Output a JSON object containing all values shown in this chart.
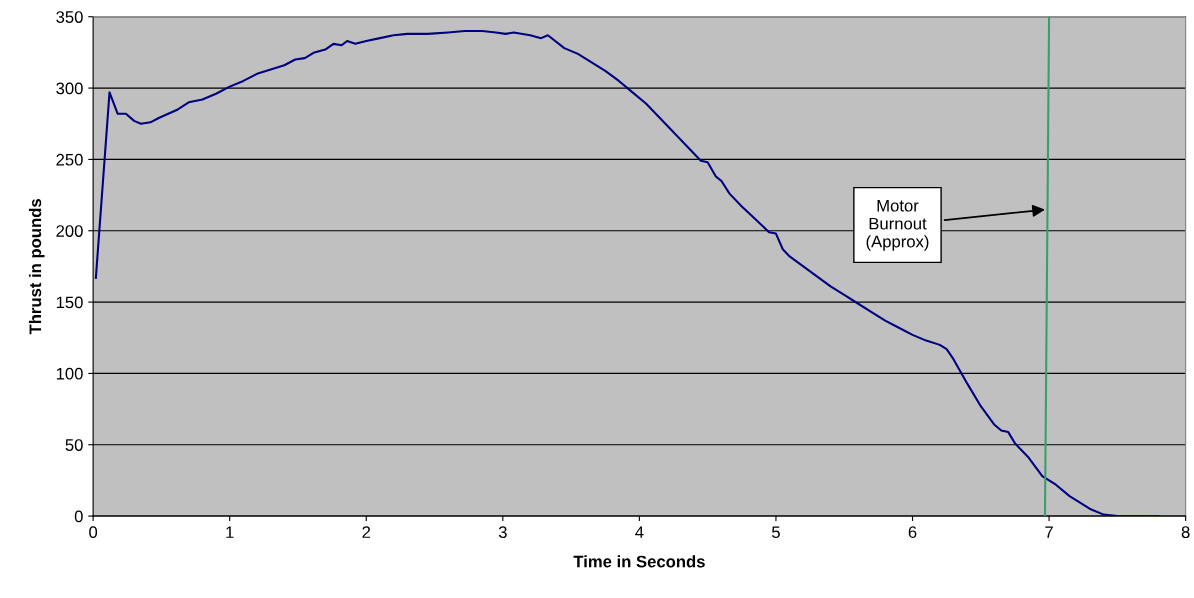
{
  "chart_data": {
    "type": "line",
    "xlabel": "Time in Seconds",
    "ylabel": "Thrust in pounds",
    "xlim": [
      0,
      8
    ],
    "ylim": [
      0,
      350
    ],
    "xticks": [
      0,
      1,
      2,
      3,
      4,
      5,
      6,
      7,
      8
    ],
    "yticks": [
      0,
      50,
      100,
      150,
      200,
      250,
      300,
      350
    ],
    "grid": "y",
    "marker": "none",
    "line_style": "solid",
    "series": [
      {
        "color": "#000080",
        "x": [
          0.02,
          0.12,
          0.18,
          0.24,
          0.3,
          0.35,
          0.42,
          0.48,
          0.55,
          0.62,
          0.7,
          0.8,
          0.9,
          1.0,
          1.1,
          1.2,
          1.3,
          1.4,
          1.48,
          1.55,
          1.62,
          1.7,
          1.76,
          1.82,
          1.86,
          1.92,
          2.0,
          2.1,
          2.2,
          2.3,
          2.45,
          2.6,
          2.72,
          2.85,
          2.95,
          3.02,
          3.08,
          3.2,
          3.28,
          3.33,
          3.45,
          3.55,
          3.65,
          3.75,
          3.85,
          3.95,
          4.05,
          4.15,
          4.25,
          4.35,
          4.45,
          4.5,
          4.56,
          4.6,
          4.66,
          4.75,
          4.85,
          4.95,
          5.0,
          5.05,
          5.1,
          5.2,
          5.3,
          5.4,
          5.5,
          5.6,
          5.7,
          5.8,
          5.9,
          6.0,
          6.1,
          6.2,
          6.25,
          6.3,
          6.4,
          6.5,
          6.6,
          6.65,
          6.7,
          6.75,
          6.85,
          6.95,
          7.05,
          7.15,
          7.3,
          7.4,
          7.5,
          7.8
        ],
        "values": [
          167,
          297,
          282,
          282,
          277,
          275,
          276,
          279,
          282,
          285,
          290,
          292,
          296,
          301,
          305,
          310,
          313,
          316,
          320,
          321,
          325,
          327,
          331,
          330,
          333,
          331,
          333,
          335,
          337,
          338,
          338,
          339,
          340,
          340,
          339,
          338,
          339,
          337,
          335,
          337,
          328,
          324,
          318,
          312,
          305,
          297,
          289,
          279,
          269,
          259,
          249,
          248,
          238,
          235,
          226,
          217,
          208,
          199,
          198,
          187,
          182,
          175,
          168,
          161,
          155,
          149,
          143,
          137,
          132,
          127,
          123,
          120,
          117,
          110,
          93,
          77,
          64,
          60,
          59,
          51,
          41,
          28,
          22,
          14,
          5,
          1,
          0,
          0
        ]
      },
      {
        "color": "#3a9e6a",
        "x": [
          6.97,
          7.0
        ],
        "values": [
          0,
          350
        ]
      }
    ],
    "annotations": [
      {
        "text": "Motor\nBurnout\n(Approx)",
        "x": 6.99,
        "y": 215
      }
    ]
  }
}
